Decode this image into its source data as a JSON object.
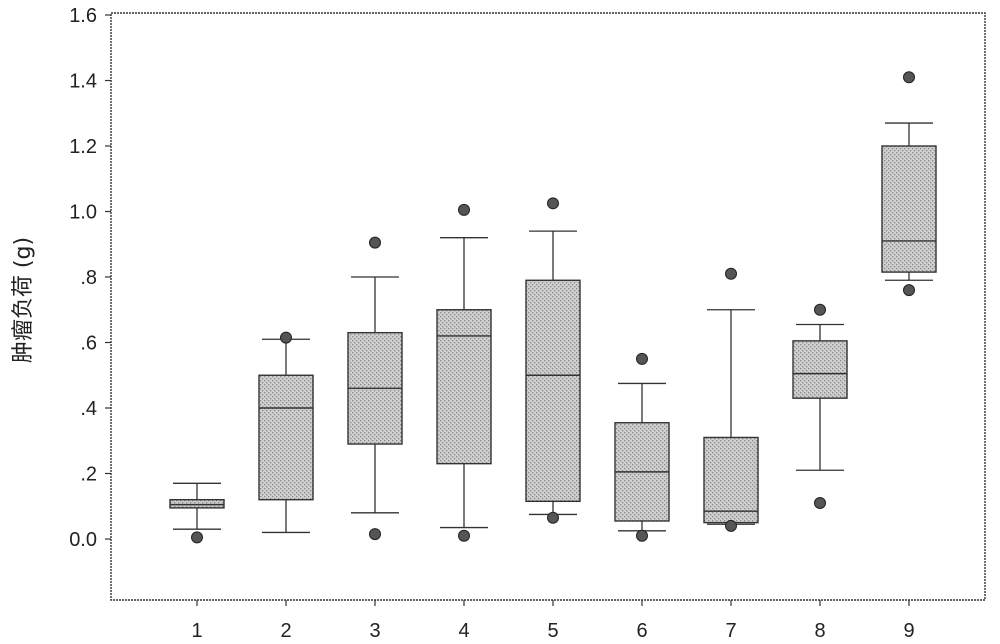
{
  "chart_data": {
    "type": "boxplot",
    "title": "",
    "xlabel": "",
    "ylabel": "肿瘤负荷 (g)",
    "ylim": [
      -0.18,
      1.6
    ],
    "y_ticks": [
      {
        "value": 1.6,
        "label": "1.6"
      },
      {
        "value": 1.4,
        "label": "1.4"
      },
      {
        "value": 1.2,
        "label": "1.2"
      },
      {
        "value": 1.0,
        "label": "1.0"
      },
      {
        "value": 0.8,
        "label": ".8"
      },
      {
        "value": 0.6,
        "label": ".6"
      },
      {
        "value": 0.4,
        "label": ".4"
      },
      {
        "value": 0.2,
        "label": ".2"
      },
      {
        "value": 0.0,
        "label": "0.0"
      }
    ],
    "categories": [
      "1",
      "2",
      "3",
      "4",
      "5",
      "6",
      "7",
      "8",
      "9"
    ],
    "boxes": [
      {
        "category": "1",
        "whisker_low": 0.03,
        "q1": 0.095,
        "median": 0.105,
        "q3": 0.12,
        "whisker_high": 0.17,
        "outliers": [
          0.005
        ]
      },
      {
        "category": "2",
        "whisker_low": 0.02,
        "q1": 0.12,
        "median": 0.4,
        "q3": 0.5,
        "whisker_high": 0.61,
        "outliers": [
          0.615
        ]
      },
      {
        "category": "3",
        "whisker_low": 0.08,
        "q1": 0.29,
        "median": 0.46,
        "q3": 0.63,
        "whisker_high": 0.8,
        "outliers": [
          0.015,
          0.905
        ]
      },
      {
        "category": "4",
        "whisker_low": 0.035,
        "q1": 0.23,
        "median": 0.62,
        "q3": 0.7,
        "whisker_high": 0.92,
        "outliers": [
          0.01,
          1.005
        ]
      },
      {
        "category": "5",
        "whisker_low": 0.075,
        "q1": 0.115,
        "median": 0.5,
        "q3": 0.79,
        "whisker_high": 0.94,
        "outliers": [
          0.065,
          1.025
        ]
      },
      {
        "category": "6",
        "whisker_low": 0.025,
        "q1": 0.055,
        "median": 0.205,
        "q3": 0.355,
        "whisker_high": 0.475,
        "outliers": [
          0.01,
          0.55
        ]
      },
      {
        "category": "7",
        "whisker_low": 0.045,
        "q1": 0.05,
        "median": 0.085,
        "q3": 0.31,
        "whisker_high": 0.7,
        "outliers": [
          0.04,
          0.81
        ]
      },
      {
        "category": "8",
        "whisker_low": 0.21,
        "q1": 0.43,
        "median": 0.505,
        "q3": 0.605,
        "whisker_high": 0.655,
        "outliers": [
          0.11,
          0.7
        ]
      },
      {
        "category": "9",
        "whisker_low": 0.79,
        "q1": 0.815,
        "median": 0.91,
        "q3": 1.2,
        "whisker_high": 1.27,
        "outliers": [
          0.76,
          1.41
        ]
      }
    ],
    "grid": false,
    "legend": "none",
    "colors": {
      "box_fill": "#cfcfcf",
      "box_stroke": "#333333",
      "outlier_fill": "#555555",
      "axis": "#333333"
    }
  }
}
